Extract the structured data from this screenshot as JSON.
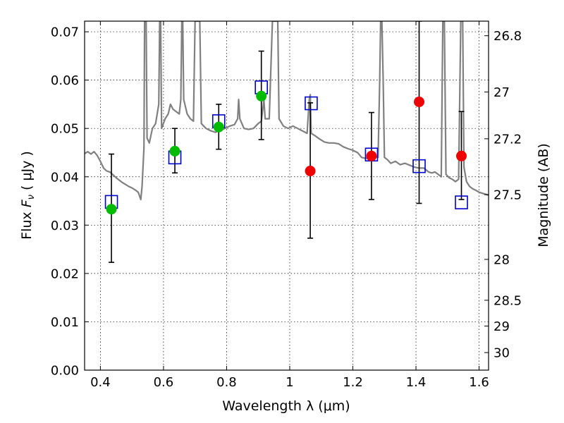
{
  "chart_data": {
    "type": "scatter",
    "xlabel": "Wavelength  λ (μm)",
    "ylabel": "Flux  F_ν  ( μJy )",
    "ylabel_parts": {
      "lead": "Flux  ",
      "var": "F",
      "sub": "ν",
      "unit": "  ( μJy )"
    },
    "y2label": "Magnitude (AB)",
    "xlim": [
      0.35,
      1.63
    ],
    "ylim": [
      0.0,
      0.0722
    ],
    "grid": true,
    "x_ticks": [
      0.4,
      0.6,
      0.8,
      1.0,
      1.2,
      1.4,
      1.6
    ],
    "x_tick_labels": [
      "0.4",
      "0.6",
      "0.8",
      "1",
      "1.2",
      "1.4",
      "1.6"
    ],
    "y_ticks": [
      0.0,
      0.01,
      0.02,
      0.03,
      0.04,
      0.05,
      0.06,
      0.07
    ],
    "y_tick_labels": [
      "0.00",
      "0.01",
      "0.02",
      "0.03",
      "0.04",
      "0.05",
      "0.06",
      "0.07"
    ],
    "y2_ticks": [
      26.8,
      27.0,
      27.2,
      27.5,
      28.0,
      28.5,
      29.0,
      30.0
    ],
    "y2_tick_labels": [
      "26.8",
      "27",
      "27.2",
      "27.5",
      "28",
      "28.5",
      "29",
      "30"
    ],
    "series": [
      {
        "marker": "circle",
        "color": "#00bb00",
        "points": [
          {
            "x": 0.435,
            "y": 0.0333,
            "err": [
              0.0223,
              0.0447
            ]
          },
          {
            "x": 0.636,
            "y": 0.0453,
            "err": [
              0.0408,
              0.05
            ]
          },
          {
            "x": 0.775,
            "y": 0.0503,
            "err": [
              0.0457,
              0.055
            ]
          },
          {
            "x": 0.91,
            "y": 0.0567,
            "err": [
              0.0477,
              0.066
            ]
          }
        ]
      },
      {
        "marker": "circle",
        "color": "#ee0000",
        "points": [
          {
            "x": 1.065,
            "y": 0.0412,
            "err": [
              0.0273,
              0.0553
            ]
          },
          {
            "x": 1.259,
            "y": 0.0443,
            "err": [
              0.0353,
              0.0533
            ]
          },
          {
            "x": 1.41,
            "y": 0.0555,
            "err": [
              0.0345,
              0.0722
            ]
          },
          {
            "x": 1.544,
            "y": 0.0443,
            "err": [
              0.0353,
              0.0535
            ]
          }
        ]
      },
      {
        "marker": "open-square",
        "color": "#0000cc",
        "points": [
          {
            "x": 0.435,
            "y": 0.0348
          },
          {
            "x": 0.636,
            "y": 0.044
          },
          {
            "x": 0.775,
            "y": 0.0515
          },
          {
            "x": 0.91,
            "y": 0.0585
          },
          {
            "x": 1.068,
            "y": 0.0552
          },
          {
            "x": 1.259,
            "y": 0.0446
          },
          {
            "x": 1.41,
            "y": 0.0422
          },
          {
            "x": 1.544,
            "y": 0.0347
          }
        ]
      }
    ],
    "model_spectrum": {
      "color": "#808080",
      "points": [
        [
          0.35,
          0.0448
        ],
        [
          0.36,
          0.0452
        ],
        [
          0.37,
          0.0447
        ],
        [
          0.38,
          0.0452
        ],
        [
          0.39,
          0.0444
        ],
        [
          0.4,
          0.0432
        ],
        [
          0.41,
          0.0418
        ],
        [
          0.42,
          0.0412
        ],
        [
          0.43,
          0.041
        ],
        [
          0.44,
          0.0404
        ],
        [
          0.45,
          0.0398
        ],
        [
          0.46,
          0.0393
        ],
        [
          0.47,
          0.0388
        ],
        [
          0.48,
          0.0384
        ],
        [
          0.49,
          0.038
        ],
        [
          0.5,
          0.0377
        ],
        [
          0.51,
          0.0373
        ],
        [
          0.52,
          0.0368
        ],
        [
          0.528,
          0.0353
        ],
        [
          0.532,
          0.038
        ],
        [
          0.538,
          0.046
        ],
        [
          0.54,
          0.0722
        ],
        [
          0.545,
          0.0722
        ],
        [
          0.548,
          0.048
        ],
        [
          0.555,
          0.047
        ],
        [
          0.565,
          0.05
        ],
        [
          0.575,
          0.051
        ],
        [
          0.585,
          0.055
        ],
        [
          0.588,
          0.0722
        ],
        [
          0.591,
          0.0722
        ],
        [
          0.594,
          0.05
        ],
        [
          0.605,
          0.052
        ],
        [
          0.615,
          0.053
        ],
        [
          0.622,
          0.055
        ],
        [
          0.63,
          0.054
        ],
        [
          0.64,
          0.0535
        ],
        [
          0.65,
          0.053
        ],
        [
          0.655,
          0.056
        ],
        [
          0.658,
          0.0722
        ],
        [
          0.661,
          0.0722
        ],
        [
          0.664,
          0.056
        ],
        [
          0.675,
          0.053
        ],
        [
          0.685,
          0.052
        ],
        [
          0.695,
          0.0515
        ],
        [
          0.7,
          0.0722
        ],
        [
          0.705,
          0.0722
        ],
        [
          0.71,
          0.0722
        ],
        [
          0.715,
          0.0722
        ],
        [
          0.72,
          0.051
        ],
        [
          0.735,
          0.05
        ],
        [
          0.75,
          0.0495
        ],
        [
          0.765,
          0.0492
        ],
        [
          0.78,
          0.0497
        ],
        [
          0.795,
          0.05
        ],
        [
          0.81,
          0.0505
        ],
        [
          0.825,
          0.0508
        ],
        [
          0.835,
          0.052
        ],
        [
          0.838,
          0.056
        ],
        [
          0.842,
          0.052
        ],
        [
          0.855,
          0.05
        ],
        [
          0.87,
          0.0498
        ],
        [
          0.885,
          0.05
        ],
        [
          0.9,
          0.051
        ],
        [
          0.91,
          0.0515
        ],
        [
          0.918,
          0.056
        ],
        [
          0.922,
          0.052
        ],
        [
          0.935,
          0.052
        ],
        [
          0.945,
          0.0722
        ],
        [
          0.95,
          0.0722
        ],
        [
          0.958,
          0.0722
        ],
        [
          0.962,
          0.0722
        ],
        [
          0.966,
          0.052
        ],
        [
          0.98,
          0.0505
        ],
        [
          0.995,
          0.05
        ],
        [
          1.01,
          0.0505
        ],
        [
          1.025,
          0.05
        ],
        [
          1.04,
          0.0495
        ],
        [
          1.055,
          0.049
        ],
        [
          1.062,
          0.056
        ],
        [
          1.065,
          0.057
        ],
        [
          1.068,
          0.049
        ],
        [
          1.08,
          0.0485
        ],
        [
          1.095,
          0.0478
        ],
        [
          1.11,
          0.0472
        ],
        [
          1.125,
          0.047
        ],
        [
          1.14,
          0.047
        ],
        [
          1.155,
          0.0468
        ],
        [
          1.17,
          0.0462
        ],
        [
          1.185,
          0.0458
        ],
        [
          1.2,
          0.0455
        ],
        [
          1.215,
          0.045
        ],
        [
          1.228,
          0.044
        ],
        [
          1.24,
          0.0438
        ],
        [
          1.255,
          0.044
        ],
        [
          1.27,
          0.0442
        ],
        [
          1.28,
          0.044
        ],
        [
          1.285,
          0.06
        ],
        [
          1.288,
          0.0722
        ],
        [
          1.292,
          0.0722
        ],
        [
          1.296,
          0.06
        ],
        [
          1.3,
          0.044
        ],
        [
          1.31,
          0.0435
        ],
        [
          1.32,
          0.0428
        ],
        [
          1.335,
          0.0432
        ],
        [
          1.35,
          0.0425
        ],
        [
          1.365,
          0.0428
        ],
        [
          1.38,
          0.0424
        ],
        [
          1.395,
          0.042
        ],
        [
          1.41,
          0.0418
        ],
        [
          1.425,
          0.0418
        ],
        [
          1.44,
          0.041
        ],
        [
          1.45,
          0.0408
        ],
        [
          1.46,
          0.041
        ],
        [
          1.47,
          0.0405
        ],
        [
          1.48,
          0.04
        ],
        [
          1.485,
          0.0722
        ],
        [
          1.49,
          0.0722
        ],
        [
          1.495,
          0.0405
        ],
        [
          1.505,
          0.0398
        ],
        [
          1.515,
          0.0395
        ],
        [
          1.525,
          0.039
        ],
        [
          1.535,
          0.0395
        ],
        [
          1.542,
          0.0722
        ],
        [
          1.548,
          0.0722
        ],
        [
          1.552,
          0.042
        ],
        [
          1.56,
          0.039
        ],
        [
          1.57,
          0.038
        ],
        [
          1.58,
          0.0375
        ],
        [
          1.59,
          0.0372
        ],
        [
          1.6,
          0.0368
        ],
        [
          1.615,
          0.0365
        ],
        [
          1.63,
          0.0362
        ]
      ]
    }
  }
}
